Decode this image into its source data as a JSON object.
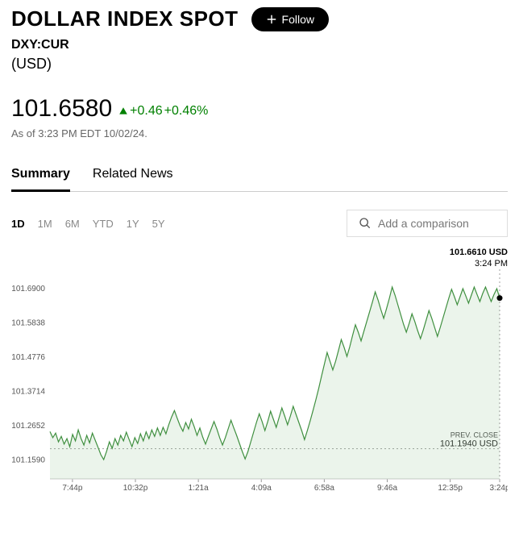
{
  "header": {
    "title": "DOLLAR INDEX SPOT",
    "follow_label": "Follow",
    "ticker": "DXY:CUR",
    "currency": "(USD)"
  },
  "quote": {
    "price": "101.6580",
    "change_abs": "+0.46",
    "change_pct": "+0.46%",
    "direction": "up",
    "change_color": "#008000",
    "timestamp": "As of 3:23 PM EDT 10/02/24."
  },
  "tabs": {
    "items": [
      "Summary",
      "Related News"
    ],
    "active_index": 0
  },
  "ranges": {
    "items": [
      "1D",
      "1M",
      "6M",
      "YTD",
      "1Y",
      "5Y"
    ],
    "active_index": 0
  },
  "compare": {
    "placeholder": "Add a comparison"
  },
  "chart": {
    "type": "line-area",
    "line_color": "#3f8f3f",
    "line_width": 1.2,
    "area_color": "#3f8f3f",
    "area_opacity": 0.1,
    "background_color": "#ffffff",
    "hover": {
      "value": "101.6610 USD",
      "time": "3:24 PM"
    },
    "dot_color": "#000000",
    "y_axis": {
      "min": 101.1,
      "max": 101.75,
      "ticks": [
        101.159,
        101.2652,
        101.3714,
        101.4776,
        101.5838,
        101.69
      ],
      "tick_labels": [
        "101.1590",
        "101.2652",
        "101.3714",
        "101.4776",
        "101.5838",
        "101.6900"
      ],
      "label_fontsize": 10,
      "label_color": "#555555"
    },
    "x_axis": {
      "tick_positions": [
        0.05,
        0.19,
        0.33,
        0.47,
        0.61,
        0.75,
        0.89,
        1.0
      ],
      "tick_labels": [
        "7:44p",
        "10:32p",
        "1:21a",
        "4:09a",
        "6:58a",
        "9:46a",
        "12:35p",
        "3:24p"
      ],
      "label_fontsize": 10,
      "label_color": "#555555"
    },
    "prev_close": {
      "label": "PREV. CLOSE",
      "value": 101.194,
      "value_label": "101.1940 USD",
      "line_color": "#888888",
      "line_dash": "2,3"
    },
    "cursor_line": {
      "x": 1.0,
      "color": "#888888",
      "dash": "2,3"
    },
    "series": [
      101.247,
      101.228,
      101.242,
      101.215,
      101.232,
      101.208,
      101.225,
      101.2,
      101.238,
      101.218,
      101.252,
      101.225,
      101.205,
      101.235,
      101.212,
      101.242,
      101.22,
      101.198,
      101.175,
      101.16,
      101.185,
      101.215,
      101.195,
      101.225,
      101.205,
      101.235,
      101.218,
      101.245,
      101.222,
      101.2,
      101.228,
      101.21,
      101.24,
      101.218,
      101.246,
      101.225,
      101.252,
      101.232,
      101.258,
      101.235,
      101.26,
      101.24,
      101.268,
      101.292,
      101.312,
      101.288,
      101.265,
      101.248,
      101.275,
      101.255,
      101.285,
      101.262,
      101.235,
      101.258,
      101.23,
      101.208,
      101.232,
      101.255,
      101.278,
      101.255,
      101.228,
      101.205,
      101.228,
      101.255,
      101.282,
      101.258,
      101.235,
      101.21,
      101.185,
      101.162,
      101.185,
      101.215,
      101.245,
      101.275,
      101.302,
      101.278,
      101.25,
      101.278,
      101.31,
      101.285,
      101.26,
      101.29,
      101.32,
      101.295,
      101.268,
      101.295,
      101.325,
      101.3,
      101.275,
      101.25,
      101.222,
      101.25,
      101.28,
      101.312,
      101.345,
      101.38,
      101.418,
      101.455,
      101.492,
      101.465,
      101.438,
      101.465,
      101.498,
      101.532,
      101.508,
      101.48,
      101.51,
      101.545,
      101.578,
      101.555,
      101.528,
      101.558,
      101.588,
      101.618,
      101.648,
      101.68,
      101.655,
      101.625,
      101.598,
      101.628,
      101.66,
      101.695,
      101.67,
      101.64,
      101.61,
      101.58,
      101.555,
      101.582,
      101.612,
      101.588,
      101.56,
      101.535,
      101.562,
      101.592,
      101.622,
      101.598,
      101.57,
      101.542,
      101.57,
      101.6,
      101.63,
      101.66,
      101.688,
      101.665,
      101.64,
      101.665,
      101.69,
      101.668,
      101.645,
      101.67,
      101.695,
      101.672,
      101.65,
      101.675,
      101.695,
      101.672,
      101.65,
      101.672,
      101.69,
      101.661
    ]
  }
}
